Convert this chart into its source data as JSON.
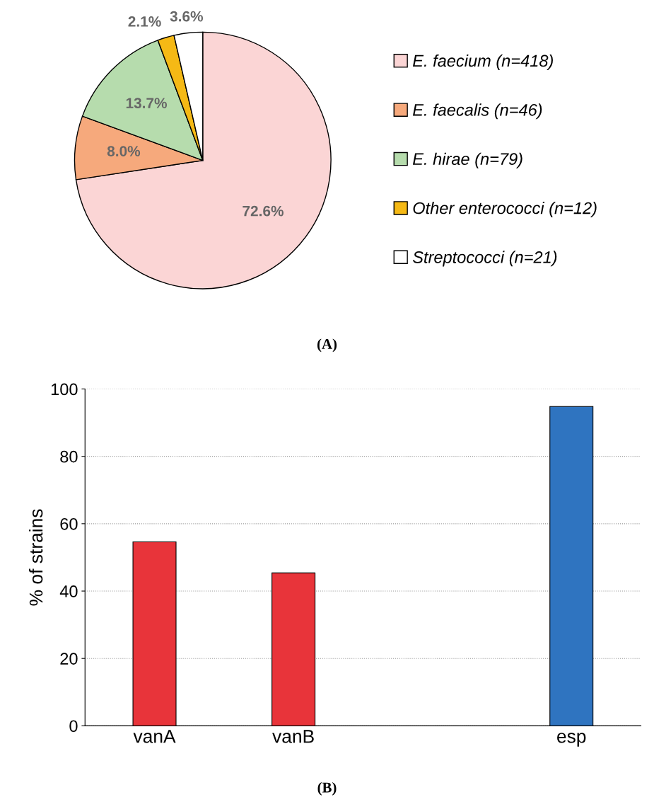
{
  "chart_data": [
    {
      "type": "pie",
      "categories": [
        "E. faecium (n=418)",
        "E. faecalis (n=46)",
        "E. hirae (n=79)",
        "Other enterococci (n=12)",
        "Streptococci (n=21)"
      ],
      "values": [
        72.6,
        8.0,
        13.7,
        2.1,
        3.6
      ],
      "colors": [
        "#fbd5d5",
        "#f6a97c",
        "#b6dcad",
        "#f5b915",
        "#ffffff"
      ],
      "value_labels": [
        "72.6%",
        "8.0%",
        "13.7%",
        "2.1%",
        "3.6%"
      ],
      "legend": "right",
      "annotations": [
        "(A)"
      ]
    },
    {
      "type": "bar",
      "categories": [
        "vanA",
        "vanB",
        null,
        "esp"
      ],
      "values": [
        54.6,
        45.4,
        null,
        94.8
      ],
      "colors": [
        "#e8343a",
        "#e8343a",
        null,
        "#2f74c0"
      ],
      "ylabel": "% of strains",
      "ylim": [
        0,
        100
      ],
      "yticks": [
        0,
        20,
        40,
        60,
        80,
        100
      ],
      "grid": "y",
      "annotations": [
        "(B)"
      ]
    }
  ]
}
